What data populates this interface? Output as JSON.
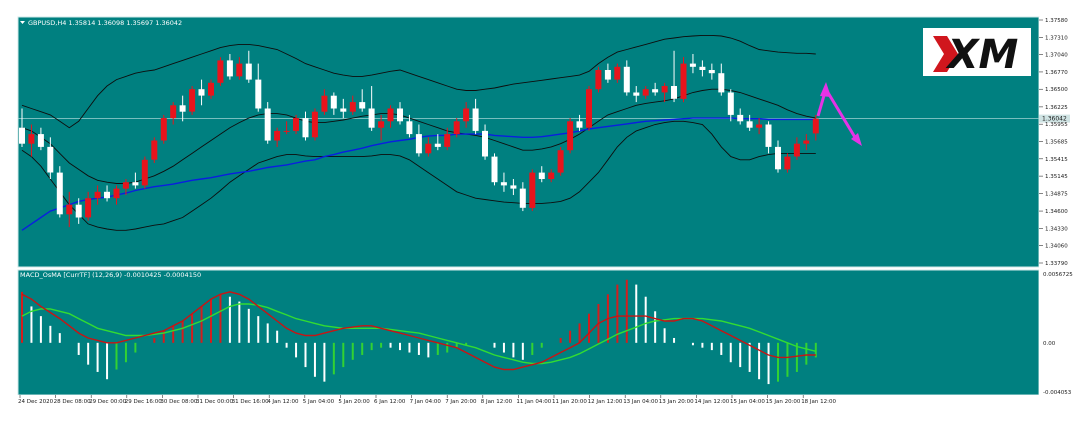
{
  "colors": {
    "background": "#008080",
    "panel_bg": "#007f7e",
    "bull_candle": "#e8141c",
    "bear_candle": "#ffffff",
    "ma_line": "#0a1ee0",
    "bands": "#0d0d0d",
    "macd_red": "#c81414",
    "macd_green": "#32dc32",
    "hist_white": "#ffffff",
    "hist_red": "#d21e1e",
    "hist_green": "#32d232",
    "arrow": "#e632e6",
    "axis_text": "#1a1a1a",
    "current_price_line": "#9fd3d3"
  },
  "main": {
    "title": "GBPUSD,H4  1.35814 1.36098 1.35697 1.36042",
    "price_ticks": [
      "1.37580",
      "1.37310",
      "1.37040",
      "1.36770",
      "1.36500",
      "1.36225",
      "1.35955",
      "1.35685",
      "1.35415",
      "1.35145",
      "1.34875",
      "1.34600",
      "1.34330",
      "1.34060",
      "1.33790"
    ],
    "current_price": "1.36042",
    "logo_text": "XM"
  },
  "macd": {
    "title": "MACD_OsMA [CurrTF] (12,26,9) -0.0010425 -0.0004150",
    "ticks": [
      "0.0056725",
      "0.00",
      "-0.004053"
    ]
  },
  "time_axis": {
    "labels": [
      "24 Dec 2020",
      "28 Dec 08:00",
      "29 Dec 00:00",
      "29 Dec 16:00",
      "30 Dec 08:00",
      "31 Dec 00:00",
      "31 Dec 16:00",
      "4 Jan 12:00",
      "5 Jan 04:00",
      "5 Jan 20:00",
      "6 Jan 12:00",
      "7 Jan 04:00",
      "7 Jan 20:00",
      "8 Jan 12:00",
      "11 Jan 04:00",
      "11 Jan 20:00",
      "12 Jan 12:00",
      "13 Jan 04:00",
      "13 Jan 20:00",
      "14 Jan 12:00",
      "15 Jan 04:00",
      "15 Jan 20:00",
      "18 Jan 12:00"
    ]
  },
  "chart_data": {
    "type": "candlestick",
    "symbol": "GBPUSD",
    "timeframe": "H4",
    "ylim": [
      1.3379,
      1.3758
    ],
    "candles": [
      {
        "o": 1.359,
        "h": 1.362,
        "l": 1.356,
        "c": 1.3565
      },
      {
        "o": 1.3565,
        "h": 1.3595,
        "l": 1.3545,
        "c": 1.358
      },
      {
        "o": 1.358,
        "h": 1.359,
        "l": 1.3555,
        "c": 1.356
      },
      {
        "o": 1.356,
        "h": 1.3575,
        "l": 1.351,
        "c": 1.352
      },
      {
        "o": 1.352,
        "h": 1.353,
        "l": 1.345,
        "c": 1.3455
      },
      {
        "o": 1.3455,
        "h": 1.349,
        "l": 1.3435,
        "c": 1.347
      },
      {
        "o": 1.347,
        "h": 1.348,
        "l": 1.344,
        "c": 1.345
      },
      {
        "o": 1.345,
        "h": 1.349,
        "l": 1.3445,
        "c": 1.348
      },
      {
        "o": 1.348,
        "h": 1.35,
        "l": 1.347,
        "c": 1.349
      },
      {
        "o": 1.349,
        "h": 1.35,
        "l": 1.3475,
        "c": 1.348
      },
      {
        "o": 1.348,
        "h": 1.35,
        "l": 1.347,
        "c": 1.3495
      },
      {
        "o": 1.3495,
        "h": 1.351,
        "l": 1.3485,
        "c": 1.3505
      },
      {
        "o": 1.3505,
        "h": 1.352,
        "l": 1.3495,
        "c": 1.35
      },
      {
        "o": 1.35,
        "h": 1.3545,
        "l": 1.3495,
        "c": 1.354
      },
      {
        "o": 1.354,
        "h": 1.3575,
        "l": 1.3535,
        "c": 1.357
      },
      {
        "o": 1.357,
        "h": 1.361,
        "l": 1.3565,
        "c": 1.3605
      },
      {
        "o": 1.3605,
        "h": 1.363,
        "l": 1.3595,
        "c": 1.3625
      },
      {
        "o": 1.3625,
        "h": 1.364,
        "l": 1.36,
        "c": 1.3615
      },
      {
        "o": 1.3615,
        "h": 1.3655,
        "l": 1.361,
        "c": 1.365
      },
      {
        "o": 1.365,
        "h": 1.3665,
        "l": 1.3625,
        "c": 1.364
      },
      {
        "o": 1.364,
        "h": 1.3665,
        "l": 1.3635,
        "c": 1.366
      },
      {
        "o": 1.366,
        "h": 1.37,
        "l": 1.3655,
        "c": 1.3695
      },
      {
        "o": 1.3695,
        "h": 1.3705,
        "l": 1.3665,
        "c": 1.367
      },
      {
        "o": 1.367,
        "h": 1.37,
        "l": 1.3665,
        "c": 1.369
      },
      {
        "o": 1.369,
        "h": 1.371,
        "l": 1.366,
        "c": 1.3665
      },
      {
        "o": 1.3665,
        "h": 1.369,
        "l": 1.3615,
        "c": 1.362
      },
      {
        "o": 1.362,
        "h": 1.363,
        "l": 1.3565,
        "c": 1.357
      },
      {
        "o": 1.357,
        "h": 1.359,
        "l": 1.356,
        "c": 1.3585
      },
      {
        "o": 1.3585,
        "h": 1.36,
        "l": 1.358,
        "c": 1.3585
      },
      {
        "o": 1.3585,
        "h": 1.361,
        "l": 1.358,
        "c": 1.3605
      },
      {
        "o": 1.3605,
        "h": 1.3615,
        "l": 1.357,
        "c": 1.3575
      },
      {
        "o": 1.3575,
        "h": 1.362,
        "l": 1.357,
        "c": 1.3615
      },
      {
        "o": 1.3615,
        "h": 1.365,
        "l": 1.361,
        "c": 1.364
      },
      {
        "o": 1.364,
        "h": 1.3645,
        "l": 1.361,
        "c": 1.362
      },
      {
        "o": 1.362,
        "h": 1.3635,
        "l": 1.3605,
        "c": 1.3615
      },
      {
        "o": 1.3615,
        "h": 1.364,
        "l": 1.361,
        "c": 1.363
      },
      {
        "o": 1.363,
        "h": 1.365,
        "l": 1.3615,
        "c": 1.362
      },
      {
        "o": 1.362,
        "h": 1.3655,
        "l": 1.3585,
        "c": 1.359
      },
      {
        "o": 1.359,
        "h": 1.361,
        "l": 1.357,
        "c": 1.36
      },
      {
        "o": 1.36,
        "h": 1.3625,
        "l": 1.359,
        "c": 1.362
      },
      {
        "o": 1.362,
        "h": 1.363,
        "l": 1.3595,
        "c": 1.36
      },
      {
        "o": 1.36,
        "h": 1.361,
        "l": 1.3575,
        "c": 1.358
      },
      {
        "o": 1.358,
        "h": 1.3595,
        "l": 1.3545,
        "c": 1.355
      },
      {
        "o": 1.355,
        "h": 1.3575,
        "l": 1.3545,
        "c": 1.3565
      },
      {
        "o": 1.3565,
        "h": 1.358,
        "l": 1.3555,
        "c": 1.356
      },
      {
        "o": 1.356,
        "h": 1.359,
        "l": 1.3555,
        "c": 1.358
      },
      {
        "o": 1.358,
        "h": 1.3605,
        "l": 1.3575,
        "c": 1.36
      },
      {
        "o": 1.36,
        "h": 1.363,
        "l": 1.359,
        "c": 1.362
      },
      {
        "o": 1.362,
        "h": 1.3635,
        "l": 1.358,
        "c": 1.3585
      },
      {
        "o": 1.3585,
        "h": 1.3595,
        "l": 1.354,
        "c": 1.3545
      },
      {
        "o": 1.3545,
        "h": 1.355,
        "l": 1.35,
        "c": 1.3505
      },
      {
        "o": 1.3505,
        "h": 1.352,
        "l": 1.349,
        "c": 1.35
      },
      {
        "o": 1.35,
        "h": 1.351,
        "l": 1.3485,
        "c": 1.3495
      },
      {
        "o": 1.3495,
        "h": 1.3505,
        "l": 1.346,
        "c": 1.3465
      },
      {
        "o": 1.3465,
        "h": 1.3525,
        "l": 1.346,
        "c": 1.352
      },
      {
        "o": 1.352,
        "h": 1.353,
        "l": 1.3505,
        "c": 1.351
      },
      {
        "o": 1.351,
        "h": 1.3525,
        "l": 1.3505,
        "c": 1.352
      },
      {
        "o": 1.352,
        "h": 1.356,
        "l": 1.3515,
        "c": 1.3555
      },
      {
        "o": 1.3555,
        "h": 1.3605,
        "l": 1.355,
        "c": 1.36
      },
      {
        "o": 1.36,
        "h": 1.361,
        "l": 1.3585,
        "c": 1.359
      },
      {
        "o": 1.359,
        "h": 1.3655,
        "l": 1.3585,
        "c": 1.365
      },
      {
        "o": 1.365,
        "h": 1.3685,
        "l": 1.3645,
        "c": 1.368
      },
      {
        "o": 1.368,
        "h": 1.369,
        "l": 1.366,
        "c": 1.3665
      },
      {
        "o": 1.3665,
        "h": 1.369,
        "l": 1.366,
        "c": 1.3685
      },
      {
        "o": 1.3685,
        "h": 1.3695,
        "l": 1.364,
        "c": 1.3645
      },
      {
        "o": 1.3645,
        "h": 1.3655,
        "l": 1.363,
        "c": 1.364
      },
      {
        "o": 1.364,
        "h": 1.3655,
        "l": 1.3635,
        "c": 1.365
      },
      {
        "o": 1.365,
        "h": 1.366,
        "l": 1.364,
        "c": 1.3645
      },
      {
        "o": 1.3645,
        "h": 1.366,
        "l": 1.363,
        "c": 1.3655
      },
      {
        "o": 1.3655,
        "h": 1.371,
        "l": 1.363,
        "c": 1.3635
      },
      {
        "o": 1.3635,
        "h": 1.37,
        "l": 1.363,
        "c": 1.369
      },
      {
        "o": 1.369,
        "h": 1.3705,
        "l": 1.3675,
        "c": 1.3685
      },
      {
        "o": 1.3685,
        "h": 1.3695,
        "l": 1.367,
        "c": 1.368
      },
      {
        "o": 1.368,
        "h": 1.369,
        "l": 1.3665,
        "c": 1.3675
      },
      {
        "o": 1.3675,
        "h": 1.369,
        "l": 1.364,
        "c": 1.3645
      },
      {
        "o": 1.3645,
        "h": 1.365,
        "l": 1.36,
        "c": 1.361
      },
      {
        "o": 1.361,
        "h": 1.362,
        "l": 1.3595,
        "c": 1.36
      },
      {
        "o": 1.36,
        "h": 1.361,
        "l": 1.3585,
        "c": 1.359
      },
      {
        "o": 1.359,
        "h": 1.3605,
        "l": 1.358,
        "c": 1.3595
      },
      {
        "o": 1.3595,
        "h": 1.36,
        "l": 1.355,
        "c": 1.356
      },
      {
        "o": 1.356,
        "h": 1.357,
        "l": 1.352,
        "c": 1.3525
      },
      {
        "o": 1.3525,
        "h": 1.355,
        "l": 1.352,
        "c": 1.3545
      },
      {
        "o": 1.3545,
        "h": 1.3575,
        "l": 1.354,
        "c": 1.3565
      },
      {
        "o": 1.3565,
        "h": 1.358,
        "l": 1.3555,
        "c": 1.357
      },
      {
        "o": 1.3581,
        "h": 1.361,
        "l": 1.357,
        "c": 1.3604
      }
    ],
    "ma_line": [
      1.343,
      1.344,
      1.345,
      1.346,
      1.3465,
      1.347,
      1.3475,
      1.3478,
      1.348,
      1.3482,
      1.3485,
      1.3488,
      1.3492,
      1.3495,
      1.3498,
      1.35,
      1.3502,
      1.3505,
      1.3508,
      1.351,
      1.3512,
      1.3515,
      1.3518,
      1.352,
      1.3522,
      1.3525,
      1.3528,
      1.353,
      1.3532,
      1.3535,
      1.3538,
      1.354,
      1.3545,
      1.3548,
      1.3552,
      1.3555,
      1.3558,
      1.3562,
      1.3565,
      1.3568,
      1.357,
      1.3572,
      1.3575,
      1.3577,
      1.3578,
      1.3578,
      1.358,
      1.358,
      1.358,
      1.358,
      1.3578,
      1.3577,
      1.3576,
      1.3575,
      1.3575,
      1.3576,
      1.3578,
      1.358,
      1.3582,
      1.3585,
      1.3588,
      1.359,
      1.3592,
      1.3594,
      1.3596,
      1.3598,
      1.36,
      1.3601,
      1.3602,
      1.3603,
      1.3604,
      1.3605,
      1.3605,
      1.3605,
      1.3605,
      1.3605,
      1.3604,
      1.3604,
      1.3604,
      1.3603,
      1.3603,
      1.3603,
      1.3603,
      1.3603,
      1.3603
    ],
    "upper_band": [
      1.3625,
      1.362,
      1.3615,
      1.361,
      1.36,
      1.359,
      1.36,
      1.362,
      1.364,
      1.3655,
      1.3665,
      1.367,
      1.3675,
      1.3678,
      1.368,
      1.3685,
      1.369,
      1.3695,
      1.37,
      1.3705,
      1.371,
      1.3715,
      1.3718,
      1.372,
      1.372,
      1.3718,
      1.3715,
      1.3712,
      1.3705,
      1.3698,
      1.369,
      1.3685,
      1.368,
      1.3675,
      1.3672,
      1.367,
      1.367,
      1.3672,
      1.3675,
      1.3678,
      1.368,
      1.3675,
      1.367,
      1.3665,
      1.366,
      1.3655,
      1.365,
      1.3648,
      1.3648,
      1.365,
      1.3652,
      1.3655,
      1.3658,
      1.366,
      1.3662,
      1.3664,
      1.3666,
      1.3668,
      1.367,
      1.3672,
      1.3678,
      1.369,
      1.37,
      1.3708,
      1.3712,
      1.3716,
      1.372,
      1.3724,
      1.3728,
      1.373,
      1.3732,
      1.3733,
      1.3734,
      1.3734,
      1.3733,
      1.373,
      1.3725,
      1.3718,
      1.3712,
      1.371,
      1.3708,
      1.3707,
      1.3706,
      1.3706,
      1.3705
    ],
    "middle_band": [
      1.359,
      1.3585,
      1.3575,
      1.3565,
      1.355,
      1.3535,
      1.3525,
      1.3515,
      1.3508,
      1.3505,
      1.3503,
      1.3503,
      1.3505,
      1.351,
      1.3515,
      1.3522,
      1.353,
      1.354,
      1.355,
      1.356,
      1.357,
      1.358,
      1.359,
      1.3598,
      1.3605,
      1.361,
      1.3612,
      1.3612,
      1.361,
      1.3605,
      1.36,
      1.3598,
      1.3598,
      1.36,
      1.3602,
      1.3605,
      1.3608,
      1.361,
      1.3612,
      1.3612,
      1.361,
      1.3605,
      1.36,
      1.3595,
      1.359,
      1.3585,
      1.3582,
      1.358,
      1.3578,
      1.3575,
      1.357,
      1.3565,
      1.356,
      1.3555,
      1.3555,
      1.3557,
      1.356,
      1.3565,
      1.3572,
      1.358,
      1.359,
      1.36,
      1.361,
      1.3615,
      1.362,
      1.3625,
      1.3628,
      1.363,
      1.3632,
      1.3635,
      1.364,
      1.3645,
      1.3648,
      1.365,
      1.365,
      1.3648,
      1.3645,
      1.364,
      1.3635,
      1.363,
      1.3625,
      1.3618,
      1.3612,
      1.3608,
      1.3605
    ],
    "lower_band": [
      1.3555,
      1.3545,
      1.353,
      1.351,
      1.349,
      1.347,
      1.3455,
      1.344,
      1.3435,
      1.3432,
      1.343,
      1.343,
      1.3432,
      1.3435,
      1.3438,
      1.344,
      1.3445,
      1.345,
      1.346,
      1.347,
      1.348,
      1.3492,
      1.3505,
      1.3515,
      1.3525,
      1.3535,
      1.354,
      1.3545,
      1.3548,
      1.3548,
      1.3546,
      1.3545,
      1.3545,
      1.3545,
      1.3545,
      1.3545,
      1.3545,
      1.3546,
      1.3548,
      1.3548,
      1.3546,
      1.354,
      1.353,
      1.352,
      1.351,
      1.35,
      1.349,
      1.3485,
      1.348,
      1.3478,
      1.3476,
      1.3474,
      1.3473,
      1.3472,
      1.3472,
      1.3472,
      1.3473,
      1.3475,
      1.348,
      1.349,
      1.3505,
      1.352,
      1.354,
      1.356,
      1.3575,
      1.3585,
      1.359,
      1.3595,
      1.3598,
      1.36,
      1.36,
      1.3598,
      1.3595,
      1.358,
      1.356,
      1.3545,
      1.354,
      1.354,
      1.3545,
      1.3548,
      1.355,
      1.355,
      1.355,
      1.355,
      1.355
    ],
    "macd_ylim": [
      -0.004053,
      0.0056725
    ],
    "macd_histogram": [
      0.0042,
      0.003,
      0.0022,
      0.0014,
      0.0008,
      0.0,
      -0.001,
      -0.0018,
      -0.0024,
      -0.003,
      -0.0022,
      -0.0016,
      -0.0008,
      0.0,
      0.0004,
      0.001,
      0.0014,
      0.0018,
      0.0024,
      0.003,
      0.0036,
      0.004,
      0.0038,
      0.0034,
      0.0028,
      0.0022,
      0.0016,
      0.001,
      -0.0004,
      -0.0012,
      -0.002,
      -0.0028,
      -0.0032,
      -0.0026,
      -0.002,
      -0.0014,
      -0.001,
      -0.0006,
      -0.0004,
      -0.0004,
      -0.0006,
      -0.0008,
      -0.001,
      -0.0012,
      -0.001,
      -0.0008,
      -0.0004,
      -0.0002,
      0.0,
      0.0,
      -0.0004,
      -0.0008,
      -0.0012,
      -0.0014,
      -0.001,
      -0.0004,
      0.0,
      0.0004,
      0.001,
      0.0016,
      0.0024,
      0.0032,
      0.004,
      0.0048,
      0.0052,
      0.0048,
      0.0038,
      0.0026,
      0.0012,
      0.0004,
      0.0,
      -0.0002,
      -0.0004,
      -0.0006,
      -0.001,
      -0.0016,
      -0.002,
      -0.0024,
      -0.003,
      -0.0034,
      -0.0032,
      -0.0028,
      -0.0024,
      -0.0018,
      -0.0012
    ],
    "macd_line": [
      0.004,
      0.0036,
      0.003,
      0.0025,
      0.002,
      0.0014,
      0.0008,
      0.0004,
      0.0002,
      0.0,
      0.0,
      0.0002,
      0.0004,
      0.0006,
      0.0008,
      0.001,
      0.0014,
      0.0018,
      0.0024,
      0.003,
      0.0036,
      0.004,
      0.0042,
      0.004,
      0.0036,
      0.003,
      0.0024,
      0.0018,
      0.0012,
      0.0008,
      0.0006,
      0.0006,
      0.0008,
      0.001,
      0.0012,
      0.0013,
      0.0014,
      0.0014,
      0.0012,
      0.001,
      0.0008,
      0.0006,
      0.0004,
      0.0002,
      0.0,
      -0.0002,
      -0.0004,
      -0.0008,
      -0.0012,
      -0.0016,
      -0.002,
      -0.0022,
      -0.0022,
      -0.002,
      -0.0018,
      -0.0016,
      -0.0012,
      -0.0008,
      -0.0004,
      0.0,
      0.0008,
      0.0016,
      0.002,
      0.0022,
      0.0022,
      0.0022,
      0.0022,
      0.002,
      0.0018,
      0.0018,
      0.002,
      0.002,
      0.0018,
      0.0014,
      0.001,
      0.0006,
      0.0002,
      -0.0002,
      -0.0006,
      -0.001,
      -0.0012,
      -0.0012,
      -0.0011,
      -0.001,
      -0.001
    ],
    "signal_line": [
      0.0022,
      0.0026,
      0.0028,
      0.0028,
      0.0026,
      0.0024,
      0.002,
      0.0016,
      0.0012,
      0.001,
      0.0008,
      0.0006,
      0.0006,
      0.0006,
      0.0007,
      0.0008,
      0.001,
      0.0012,
      0.0015,
      0.0018,
      0.0022,
      0.0026,
      0.003,
      0.0032,
      0.0032,
      0.0031,
      0.0029,
      0.0026,
      0.0023,
      0.002,
      0.0018,
      0.0016,
      0.0014,
      0.0013,
      0.0012,
      0.0012,
      0.0012,
      0.0012,
      0.0012,
      0.0011,
      0.001,
      0.0009,
      0.0008,
      0.0006,
      0.0004,
      0.0002,
      0.0,
      -0.0002,
      -0.0004,
      -0.0007,
      -0.001,
      -0.0012,
      -0.0014,
      -0.0016,
      -0.0017,
      -0.0017,
      -0.0016,
      -0.0014,
      -0.0012,
      -0.0009,
      -0.0005,
      -0.0001,
      0.0003,
      0.0007,
      0.001,
      0.0013,
      0.0016,
      0.0018,
      0.0019,
      0.002,
      0.002,
      0.002,
      0.002,
      0.0019,
      0.0018,
      0.0016,
      0.0014,
      0.0012,
      0.0009,
      0.0006,
      0.0003,
      0.0,
      -0.0003,
      -0.0005,
      -0.0007
    ]
  }
}
